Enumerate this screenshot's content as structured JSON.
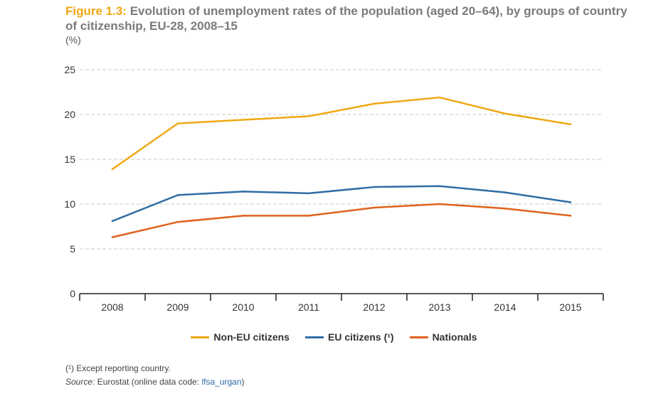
{
  "header": {
    "figure_label": "Figure 1.3:",
    "title": "Evolution of unemployment rates of the population (aged 20–64), by groups of country of citizenship, EU-28, 2008–15",
    "unit": "(%)"
  },
  "footer": {
    "footnote": "(¹) Except reporting country.",
    "source_label": "Source:",
    "source_text": "Eurostat (online data code: ",
    "source_code": "lfsa_urgan",
    "source_close": ")"
  },
  "chart_data": {
    "type": "line",
    "title": "Evolution of unemployment rates of the population (aged 20–64), by groups of country of citizenship, EU-28, 2008–15",
    "xlabel": "",
    "ylabel": "(%)",
    "categories": [
      "2008",
      "2009",
      "2010",
      "2011",
      "2012",
      "2013",
      "2014",
      "2015"
    ],
    "ylim": [
      0,
      25
    ],
    "yticks": [
      0,
      5,
      10,
      15,
      20,
      25
    ],
    "grid": true,
    "legend_position": "bottom",
    "series": [
      {
        "name": "Non-EU citizens",
        "color": "#f0a813",
        "values": [
          13.9,
          19.0,
          19.4,
          19.8,
          21.2,
          21.9,
          20.1,
          18.9
        ]
      },
      {
        "name": "EU citizens (¹)",
        "color": "#2e6da4",
        "values": [
          8.1,
          11.0,
          11.4,
          11.2,
          11.9,
          12.0,
          11.3,
          10.2
        ]
      },
      {
        "name": "Nationals",
        "color": "#e0621c",
        "values": [
          6.3,
          8.0,
          8.7,
          8.7,
          9.6,
          10.0,
          9.5,
          8.7
        ]
      }
    ]
  }
}
